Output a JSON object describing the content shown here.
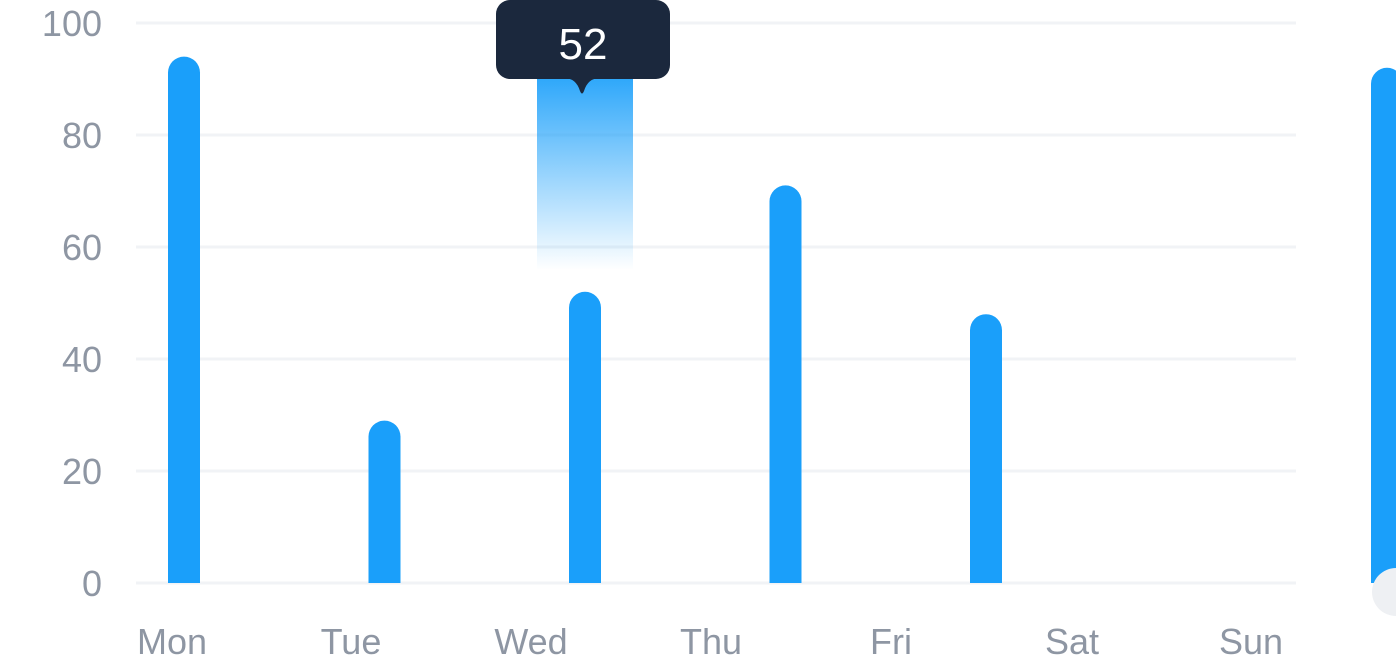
{
  "chart_data": {
    "type": "bar",
    "categories": [
      "Mon",
      "Tue",
      "Wed",
      "Thu",
      "Fri",
      "Sat",
      "Sun"
    ],
    "values": [
      94,
      29,
      52,
      71,
      48,
      0,
      92
    ],
    "ylim": [
      0,
      100
    ],
    "yticks": [
      "0",
      "20",
      "40",
      "60",
      "80",
      "100"
    ],
    "grid": true,
    "tooltip": {
      "category": "Wed",
      "value": "52"
    },
    "colors": {
      "bar": "#1a9ffa",
      "grid": "#f1f3f6",
      "tooltip_bg": "#1b283d",
      "label": "#8e96a3"
    }
  }
}
